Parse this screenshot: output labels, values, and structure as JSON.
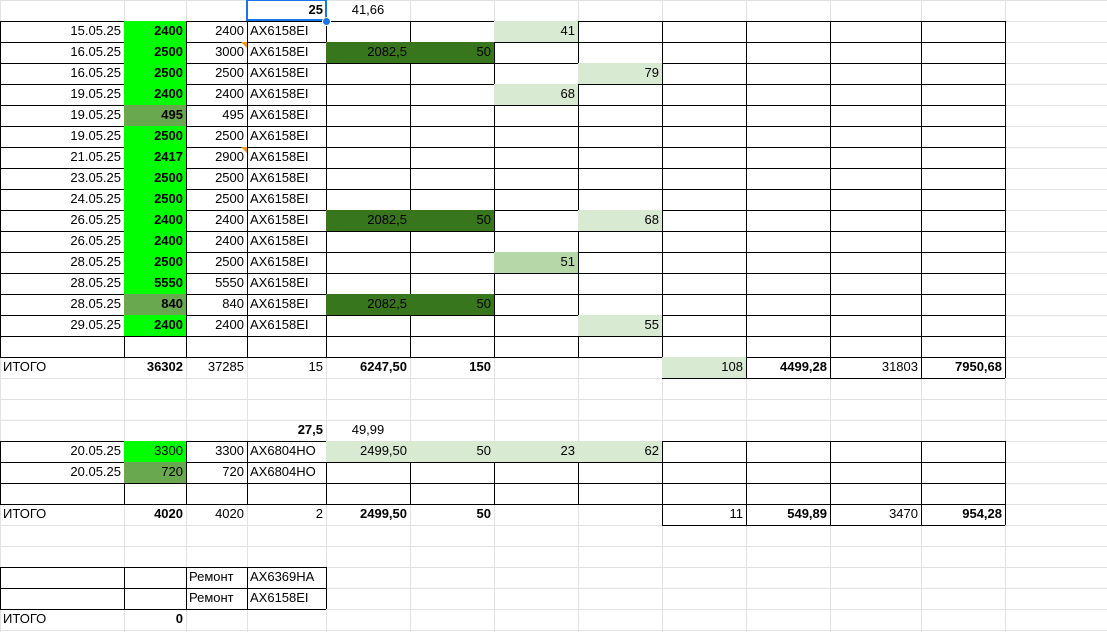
{
  "colors": {
    "bright_green": "#00ff00",
    "mid_green": "#6aa84f",
    "dark_green": "#38761d",
    "light_green": "#d9ead3",
    "pale_green": "#b6d7a8",
    "selection_blue": "#1a73e8",
    "note_orange": "#f29900"
  },
  "header_row": {
    "col_h": "25",
    "col_i": "41,66"
  },
  "rows": [
    {
      "date": "15.05.25",
      "b": "2400",
      "c": "2400",
      "plate": "AX6158EI",
      "e": "",
      "f": "",
      "g": "41",
      "h": "",
      "b_fill": "bright_green",
      "ef_fill": "",
      "g_fill": "light_green",
      "h_fill": ""
    },
    {
      "date": "16.05.25",
      "b": "2500",
      "c": "3000",
      "plate": "AX6158EI",
      "e": "2082,5",
      "f": "50",
      "g": "",
      "h": "",
      "b_fill": "bright_green",
      "ef_fill": "dark_green",
      "g_fill": "",
      "h_fill": "",
      "note": true
    },
    {
      "date": "16.05.25",
      "b": "2500",
      "c": "2500",
      "plate": "AX6158EI",
      "e": "",
      "f": "",
      "g": "",
      "h": "79",
      "b_fill": "bright_green",
      "ef_fill": "",
      "g_fill": "",
      "h_fill": "light_green"
    },
    {
      "date": "19.05.25",
      "b": "2400",
      "c": "2400",
      "plate": "AX6158EI",
      "e": "",
      "f": "",
      "g": "68",
      "h": "",
      "b_fill": "bright_green",
      "ef_fill": "",
      "g_fill": "light_green",
      "h_fill": ""
    },
    {
      "date": "19.05.25",
      "b": "495",
      "c": "495",
      "plate": "AX6158EI",
      "e": "",
      "f": "",
      "g": "",
      "h": "",
      "b_fill": "mid_green",
      "ef_fill": "",
      "g_fill": "",
      "h_fill": ""
    },
    {
      "date": "19.05.25",
      "b": "2500",
      "c": "2500",
      "plate": "AX6158EI",
      "e": "",
      "f": "",
      "g": "",
      "h": "",
      "b_fill": "bright_green",
      "ef_fill": "",
      "g_fill": "",
      "h_fill": ""
    },
    {
      "date": "21.05.25",
      "b": "2417",
      "c": "2900",
      "plate": "AX6158EI",
      "e": "",
      "f": "",
      "g": "",
      "h": "",
      "b_fill": "bright_green",
      "ef_fill": "",
      "g_fill": "",
      "h_fill": "",
      "note": true
    },
    {
      "date": "23.05.25",
      "b": "2500",
      "c": "2500",
      "plate": "AX6158EI",
      "e": "",
      "f": "",
      "g": "",
      "h": "",
      "b_fill": "bright_green",
      "ef_fill": "",
      "g_fill": "",
      "h_fill": ""
    },
    {
      "date": "24.05.25",
      "b": "2500",
      "c": "2500",
      "plate": "AX6158EI",
      "e": "",
      "f": "",
      "g": "",
      "h": "",
      "b_fill": "bright_green",
      "ef_fill": "",
      "g_fill": "",
      "h_fill": ""
    },
    {
      "date": "26.05.25",
      "b": "2400",
      "c": "2400",
      "plate": "AX6158EI",
      "e": "2082,5",
      "f": "50",
      "g": "",
      "h": "68",
      "b_fill": "bright_green",
      "ef_fill": "dark_green",
      "g_fill": "",
      "h_fill": "light_green"
    },
    {
      "date": "26.05.25",
      "b": "2400",
      "c": "2400",
      "plate": "AX6158EI",
      "e": "",
      "f": "",
      "g": "",
      "h": "",
      "b_fill": "bright_green",
      "ef_fill": "",
      "g_fill": "",
      "h_fill": ""
    },
    {
      "date": "28.05.25",
      "b": "2500",
      "c": "2500",
      "plate": "AX6158EI",
      "e": "",
      "f": "",
      "g": "51",
      "h": "",
      "b_fill": "bright_green",
      "ef_fill": "",
      "g_fill": "pale_green",
      "h_fill": ""
    },
    {
      "date": "28.05.25",
      "b": "5550",
      "c": "5550",
      "plate": "AX6158EI",
      "e": "",
      "f": "",
      "g": "",
      "h": "",
      "b_fill": "bright_green",
      "ef_fill": "",
      "g_fill": "",
      "h_fill": ""
    },
    {
      "date": "28.05.25",
      "b": "840",
      "c": "840",
      "plate": "AX6158EI",
      "e": "2082,5",
      "f": "50",
      "g": "",
      "h": "",
      "b_fill": "mid_green",
      "ef_fill": "dark_green",
      "g_fill": "",
      "h_fill": ""
    },
    {
      "date": "29.05.25",
      "b": "2400",
      "c": "2400",
      "plate": "AX6158EI",
      "e": "",
      "f": "",
      "g": "",
      "h": "55",
      "b_fill": "bright_green",
      "ef_fill": "",
      "g_fill": "",
      "h_fill": "light_green"
    }
  ],
  "total1": {
    "label": "ИТОГО",
    "b": "36302",
    "c": "37285",
    "d": "15",
    "e": "6247,50",
    "f": "150",
    "i": "108",
    "j": "4499,28",
    "k": "31803",
    "l": "7950,68"
  },
  "header2": {
    "d": "27,5",
    "e": "49,99"
  },
  "rows2": [
    {
      "date": "20.05.25",
      "b": "3300",
      "c": "3300",
      "plate": "AX6804HO",
      "e": "2499,50",
      "f": "50",
      "g": "23",
      "h": "62",
      "b_fill": "bright_green"
    },
    {
      "date": "20.05.25",
      "b": "720",
      "c": "720",
      "plate": "AX6804HO",
      "e": "",
      "f": "",
      "g": "",
      "h": "",
      "b_fill": "mid_green"
    }
  ],
  "total2": {
    "label": "ИТОГО",
    "b": "4020",
    "c": "4020",
    "d": "2",
    "e": "2499,50",
    "f": "50",
    "i": "11",
    "j": "549,89",
    "k": "3470",
    "l": "954,28"
  },
  "repairs": [
    {
      "type": "Ремонт",
      "plate": "AX6369HA"
    },
    {
      "type": "Ремонт",
      "plate": "AX6158EI"
    }
  ],
  "total3": {
    "label": "ИТОГО",
    "b": "0"
  }
}
